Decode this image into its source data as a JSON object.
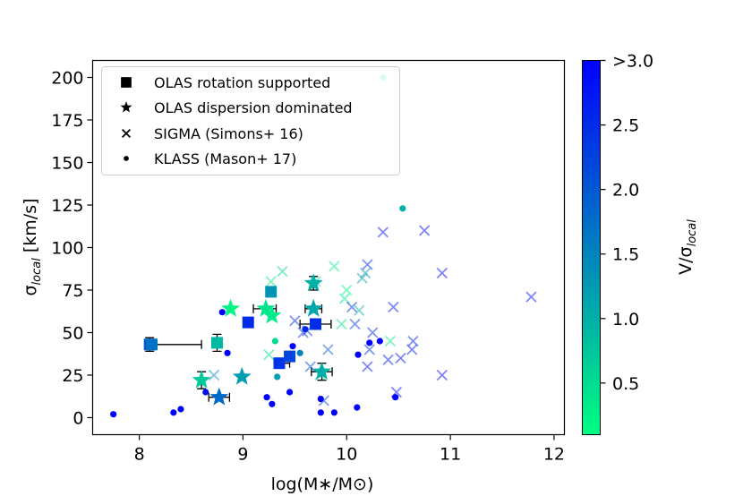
{
  "chart_data": {
    "type": "scatter",
    "xlabel": "log(M∗/M⊙)",
    "ylabel": "σ",
    "ylabel_subscript": "local",
    "ylabel_units": " [km/s]",
    "xlim": [
      7.55,
      12.1
    ],
    "ylim": [
      -10,
      210
    ],
    "xticks": [
      "8",
      "9",
      "10",
      "11",
      "12"
    ],
    "yticks": [
      "0",
      "25",
      "50",
      "75",
      "100",
      "125",
      "150",
      "175",
      "200"
    ],
    "colorbar": {
      "label": "V/σ",
      "label_subscript": "local",
      "range": [
        0.1,
        3.0
      ],
      "ticks": [
        "0.5",
        "1.0",
        "1.5",
        "2.0",
        "2.5",
        ">3.0"
      ],
      "low_color": "#00ff80",
      "high_color": "#0000ff"
    },
    "legend": {
      "placement": "top-left",
      "entries": [
        {
          "marker": "square",
          "label": "OLAS rotation supported"
        },
        {
          "marker": "star",
          "label": "OLAS dispersion dominated"
        },
        {
          "marker": "x",
          "label": "SIGMA (Simons+ 16)"
        },
        {
          "marker": "dot",
          "label": "KLASS (Mason+ 17)"
        }
      ]
    },
    "series": [
      {
        "name": "OLAS rotation supported",
        "marker": "square",
        "points": [
          {
            "x": 8.1,
            "y": 43,
            "v": 2.0,
            "xerr": [
              0.03,
              0.5
            ],
            "yerr": 4
          },
          {
            "x": 8.12,
            "y": 43,
            "v": 1.7
          },
          {
            "x": 8.75,
            "y": 44,
            "v": 0.9,
            "yerr": 5
          },
          {
            "x": 9.05,
            "y": 56,
            "v": 2.5
          },
          {
            "x": 9.27,
            "y": 74,
            "v": 1.3
          },
          {
            "x": 9.35,
            "y": 32,
            "v": 2.4,
            "xerr": [
              0.05,
              0.1
            ]
          },
          {
            "x": 9.45,
            "y": 36,
            "v": 2.2
          },
          {
            "x": 9.7,
            "y": 55,
            "v": 2.5,
            "xerr": [
              0.15,
              0.15
            ]
          }
        ]
      },
      {
        "name": "OLAS dispersion dominated",
        "marker": "star",
        "points": [
          {
            "x": 8.6,
            "y": 22,
            "v": 0.7,
            "yerr": 5
          },
          {
            "x": 8.77,
            "y": 12,
            "v": 1.8,
            "xerr": [
              0.1,
              0.1
            ]
          },
          {
            "x": 8.88,
            "y": 64,
            "v": 0.2
          },
          {
            "x": 8.99,
            "y": 24,
            "v": 1.2
          },
          {
            "x": 9.22,
            "y": 64,
            "v": 0.4,
            "xerr": [
              0.12,
              0.1
            ]
          },
          {
            "x": 9.28,
            "y": 60,
            "v": 0.3
          },
          {
            "x": 9.68,
            "y": 64,
            "v": 1.1,
            "xerr": [
              0.08,
              0.08
            ]
          },
          {
            "x": 9.68,
            "y": 79,
            "v": 1.0,
            "yerr": 4
          },
          {
            "x": 9.76,
            "y": 27,
            "v": 1.0,
            "xerr": [
              0.1,
              0.1
            ],
            "yerr": 5
          }
        ]
      },
      {
        "name": "SIGMA (Simons+ 16)",
        "marker": "x",
        "points": [
          {
            "x": 8.72,
            "y": 25,
            "v": 1.5
          },
          {
            "x": 9.27,
            "y": 80,
            "v": 0.4
          },
          {
            "x": 9.38,
            "y": 86,
            "v": 0.6
          },
          {
            "x": 9.25,
            "y": 37,
            "v": 0.5
          },
          {
            "x": 9.5,
            "y": 57,
            "v": 2.5
          },
          {
            "x": 9.58,
            "y": 50,
            "v": 2.4
          },
          {
            "x": 9.62,
            "y": 51,
            "v": 2.6
          },
          {
            "x": 9.65,
            "y": 30,
            "v": 2.2
          },
          {
            "x": 9.7,
            "y": 80,
            "v": 0.5
          },
          {
            "x": 9.74,
            "y": 25,
            "v": 0.8
          },
          {
            "x": 9.78,
            "y": 10,
            "v": 2.3
          },
          {
            "x": 9.82,
            "y": 40,
            "v": 2.0
          },
          {
            "x": 9.88,
            "y": 89,
            "v": 0.3
          },
          {
            "x": 9.95,
            "y": 55,
            "v": 0.4
          },
          {
            "x": 9.98,
            "y": 70,
            "v": 0.3
          },
          {
            "x": 10.0,
            "y": 75,
            "v": 0.2
          },
          {
            "x": 10.05,
            "y": 65,
            "v": 2.5
          },
          {
            "x": 10.12,
            "y": 63,
            "v": 1.0
          },
          {
            "x": 10.15,
            "y": 82,
            "v": 1.2
          },
          {
            "x": 10.18,
            "y": 85,
            "v": 1.3
          },
          {
            "x": 10.2,
            "y": 90,
            "v": 2.5
          },
          {
            "x": 10.22,
            "y": 40,
            "v": 2.5
          },
          {
            "x": 10.25,
            "y": 50,
            "v": 2.6
          },
          {
            "x": 10.2,
            "y": 30,
            "v": 2.8
          },
          {
            "x": 10.08,
            "y": 55,
            "v": 2.4
          },
          {
            "x": 10.35,
            "y": 109,
            "v": 2.8
          },
          {
            "x": 10.42,
            "y": 45,
            "v": 0.3
          },
          {
            "x": 10.4,
            "y": 34,
            "v": 2.7
          },
          {
            "x": 10.45,
            "y": 65,
            "v": 2.8
          },
          {
            "x": 10.48,
            "y": 15,
            "v": 2.9
          },
          {
            "x": 10.52,
            "y": 35,
            "v": 2.8
          },
          {
            "x": 10.63,
            "y": 40,
            "v": 2.7
          },
          {
            "x": 10.64,
            "y": 45,
            "v": 2.6
          },
          {
            "x": 10.75,
            "y": 110,
            "v": 2.9
          },
          {
            "x": 10.92,
            "y": 85,
            "v": 2.9
          },
          {
            "x": 10.92,
            "y": 25,
            "v": 2.9
          },
          {
            "x": 11.78,
            "y": 71,
            "v": 2.8
          }
        ]
      },
      {
        "name": "KLASS (Mason+ 17)",
        "marker": "dot",
        "points": [
          {
            "x": 7.75,
            "y": 2,
            "v": 3.0
          },
          {
            "x": 8.33,
            "y": 3,
            "v": 3.0
          },
          {
            "x": 8.4,
            "y": 5,
            "v": 3.0
          },
          {
            "x": 8.64,
            "y": 15,
            "v": 2.8
          },
          {
            "x": 8.8,
            "y": 62,
            "v": 3.0
          },
          {
            "x": 8.85,
            "y": 38,
            "v": 3.0
          },
          {
            "x": 9.23,
            "y": 12,
            "v": 3.0
          },
          {
            "x": 9.28,
            "y": 8,
            "v": 3.0
          },
          {
            "x": 9.31,
            "y": 45,
            "v": 0.5
          },
          {
            "x": 9.33,
            "y": 24,
            "v": 1.2
          },
          {
            "x": 9.45,
            "y": 15,
            "v": 3.0
          },
          {
            "x": 9.48,
            "y": 42,
            "v": 3.0
          },
          {
            "x": 9.55,
            "y": 38,
            "v": 1.5
          },
          {
            "x": 9.6,
            "y": 52,
            "v": 2.5
          },
          {
            "x": 9.75,
            "y": 11,
            "v": 3.0
          },
          {
            "x": 9.75,
            "y": 3,
            "v": 3.0
          },
          {
            "x": 9.88,
            "y": 3,
            "v": 3.0
          },
          {
            "x": 10.1,
            "y": 6,
            "v": 3.0
          },
          {
            "x": 10.11,
            "y": 37,
            "v": 3.0
          },
          {
            "x": 10.22,
            "y": 44,
            "v": 3.0
          },
          {
            "x": 10.32,
            "y": 45,
            "v": 3.0
          },
          {
            "x": 10.47,
            "y": 12,
            "v": 3.0
          },
          {
            "x": 10.35,
            "y": 200,
            "v": 0.1
          },
          {
            "x": 10.54,
            "y": 123,
            "v": 1.0
          }
        ]
      }
    ]
  }
}
